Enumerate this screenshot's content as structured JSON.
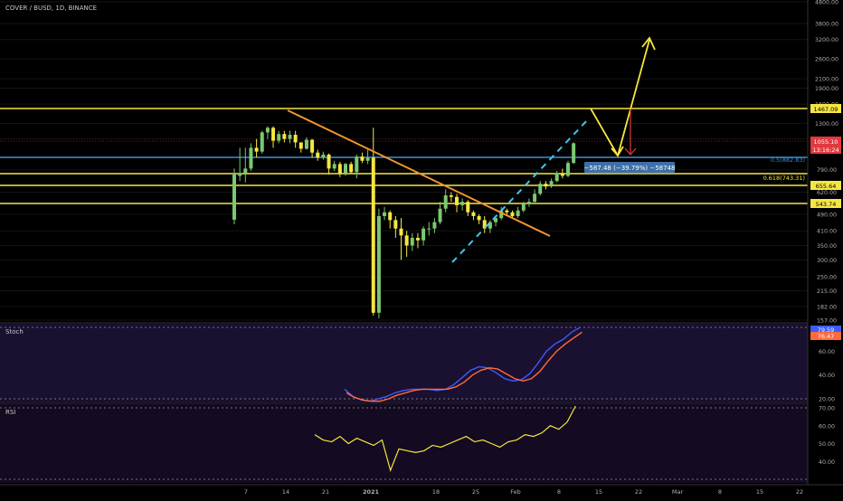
{
  "header": {
    "title": "COVER / BUSD, 1D, BINANCE"
  },
  "colors": {
    "background": "#000000",
    "bull": "#7bc96f",
    "bear": "#f5e642",
    "level": "#f5e642",
    "blue_level": "#3d8fd6",
    "trendline": "#f5962f",
    "channel": "#3fc4f0",
    "stoch_k": "#3d5cff",
    "stoch_d": "#ff6a3d",
    "rsi": "#f5e642",
    "indicator_bg": "#1a1030"
  },
  "price_axis": {
    "ticks": [
      "4800.00",
      "3800.00",
      "3200.00",
      "2600.00",
      "2100.00",
      "1900.00",
      "1600.00",
      "1300.00",
      "1100.00",
      "790.00",
      "620.00",
      "490.00",
      "410.00",
      "350.00",
      "300.00",
      "250.00",
      "215.00",
      "182.00",
      "157.00"
    ]
  },
  "price_labels": {
    "level_1467": "1467.09",
    "last_price": "1055.10",
    "countdown": "13:16:24",
    "level_655": "655.64",
    "level_543": "543.74"
  },
  "fib_labels": {
    "half": "0.5(882.83)",
    "golden": "0.618(743.31)"
  },
  "measure_label": "−587.48 (−39.79%) −58748",
  "time_axis": {
    "labels": [
      "7",
      "14",
      "21",
      "2021",
      "18",
      "25",
      "Feb",
      "8",
      "15",
      "22",
      "Mar",
      "8",
      "15",
      "22"
    ]
  },
  "stoch": {
    "title": "Stoch",
    "ticks": [
      "80.00",
      "60.00",
      "40.00",
      "20.00"
    ],
    "value_k": "79.59",
    "value_d": "76.47"
  },
  "rsi": {
    "title": "RSI",
    "ticks": [
      "70.00",
      "60.00",
      "50.00",
      "40.00"
    ]
  },
  "chart_data": {
    "type": "candlestick",
    "scale": "log",
    "ylim": [
      157,
      4800
    ],
    "candles": [
      [
        462,
        750,
        440,
        800
      ],
      [
        740,
        760,
        700,
        1000
      ],
      [
        760,
        800,
        690,
        1000
      ],
      [
        800,
        1000,
        780,
        1050
      ],
      [
        1000,
        960,
        900,
        1100
      ],
      [
        960,
        1180,
        940,
        1200
      ],
      [
        1180,
        1240,
        1100,
        1260
      ],
      [
        1240,
        1080,
        1000,
        1260
      ],
      [
        1080,
        1160,
        1050,
        1200
      ],
      [
        1160,
        1100,
        1060,
        1200
      ],
      [
        1100,
        1150,
        1050,
        1200
      ],
      [
        1150,
        1060,
        1000,
        1200
      ],
      [
        1060,
        990,
        950,
        1060
      ],
      [
        990,
        1090,
        980,
        1120
      ],
      [
        1090,
        950,
        900,
        1100
      ],
      [
        950,
        900,
        870,
        980
      ],
      [
        900,
        930,
        880,
        960
      ],
      [
        930,
        800,
        750,
        940
      ],
      [
        800,
        840,
        780,
        870
      ],
      [
        840,
        760,
        730,
        860
      ],
      [
        760,
        840,
        740,
        850
      ],
      [
        840,
        770,
        760,
        860
      ],
      [
        770,
        910,
        720,
        930
      ],
      [
        910,
        870,
        850,
        950
      ],
      [
        870,
        900,
        840,
        980
      ],
      [
        900,
        170,
        165,
        1240
      ],
      [
        170,
        480,
        160,
        520
      ],
      [
        480,
        500,
        460,
        530
      ],
      [
        500,
        460,
        420,
        510
      ],
      [
        460,
        420,
        380,
        480
      ],
      [
        420,
        390,
        300,
        470
      ],
      [
        390,
        350,
        310,
        410
      ],
      [
        350,
        380,
        330,
        400
      ],
      [
        380,
        370,
        340,
        400
      ],
      [
        370,
        420,
        350,
        430
      ],
      [
        420,
        420,
        390,
        450
      ],
      [
        420,
        450,
        400,
        470
      ],
      [
        450,
        520,
        440,
        560
      ],
      [
        520,
        600,
        500,
        640
      ],
      [
        600,
        590,
        560,
        620
      ],
      [
        590,
        540,
        500,
        610
      ],
      [
        540,
        560,
        510,
        580
      ],
      [
        560,
        500,
        480,
        570
      ],
      [
        500,
        480,
        460,
        510
      ],
      [
        480,
        460,
        440,
        490
      ],
      [
        460,
        420,
        400,
        480
      ],
      [
        420,
        450,
        400,
        460
      ],
      [
        450,
        470,
        430,
        480
      ],
      [
        470,
        510,
        460,
        530
      ],
      [
        510,
        500,
        480,
        520
      ],
      [
        500,
        480,
        470,
        510
      ],
      [
        480,
        510,
        470,
        530
      ],
      [
        510,
        550,
        500,
        560
      ],
      [
        550,
        560,
        530,
        580
      ],
      [
        560,
        610,
        550,
        640
      ],
      [
        610,
        680,
        600,
        700
      ],
      [
        680,
        660,
        640,
        700
      ],
      [
        660,
        700,
        650,
        720
      ],
      [
        700,
        760,
        690,
        780
      ],
      [
        760,
        740,
        720,
        800
      ],
      [
        740,
        850,
        730,
        870
      ],
      [
        850,
        1050,
        840,
        1060
      ]
    ],
    "levels": [
      1467.09,
      882.83,
      743.31,
      655.64,
      543.74
    ],
    "stoch_k": [
      28,
      22,
      19,
      18,
      20,
      22,
      25,
      27,
      28,
      28,
      28,
      27,
      28,
      32,
      38,
      44,
      47,
      46,
      42,
      37,
      35,
      36,
      41,
      50,
      60,
      66,
      70,
      76,
      80
    ],
    "stoch_d": [
      25,
      21,
      19,
      18,
      18,
      20,
      23,
      25,
      27,
      28,
      28,
      28,
      28,
      30,
      34,
      40,
      44,
      46,
      45,
      41,
      37,
      35,
      37,
      43,
      52,
      60,
      66,
      71,
      76
    ],
    "rsi": [
      55,
      52,
      51,
      54,
      50,
      53,
      51,
      49,
      52,
      35,
      47,
      46,
      45,
      46,
      49,
      48,
      50,
      52,
      54,
      51,
      52,
      50,
      48,
      51,
      52,
      55,
      54,
      56,
      60,
      58,
      62,
      71
    ]
  }
}
